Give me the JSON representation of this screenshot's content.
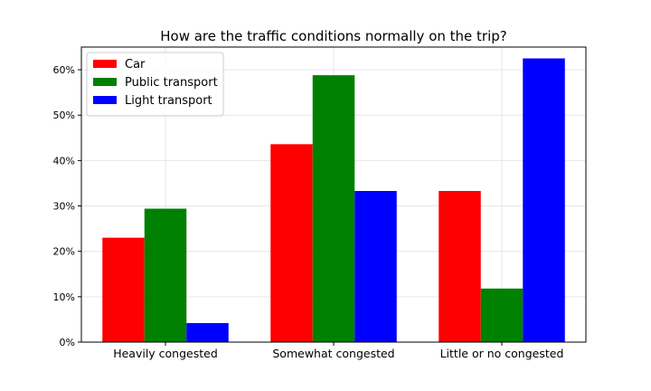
{
  "chart_data": {
    "type": "bar",
    "title": "How are the traffic conditions normally on the trip?",
    "xlabel": "",
    "ylabel": "",
    "categories": [
      "Heavily congested",
      "Somewhat congested",
      "Little or no congested"
    ],
    "series": [
      {
        "name": "Car",
        "color": "#ff0000",
        "values": [
          23.0,
          43.6,
          33.3
        ]
      },
      {
        "name": "Public transport",
        "color": "#008000",
        "values": [
          29.4,
          58.8,
          11.8
        ]
      },
      {
        "name": "Light transport",
        "color": "#0000ff",
        "values": [
          4.2,
          33.3,
          62.5
        ]
      }
    ],
    "ylim": [
      0,
      65
    ],
    "yticks": [
      0,
      10,
      20,
      30,
      40,
      50,
      60
    ],
    "ytick_format": "percent",
    "grid": true,
    "legend_position": "top-left"
  }
}
